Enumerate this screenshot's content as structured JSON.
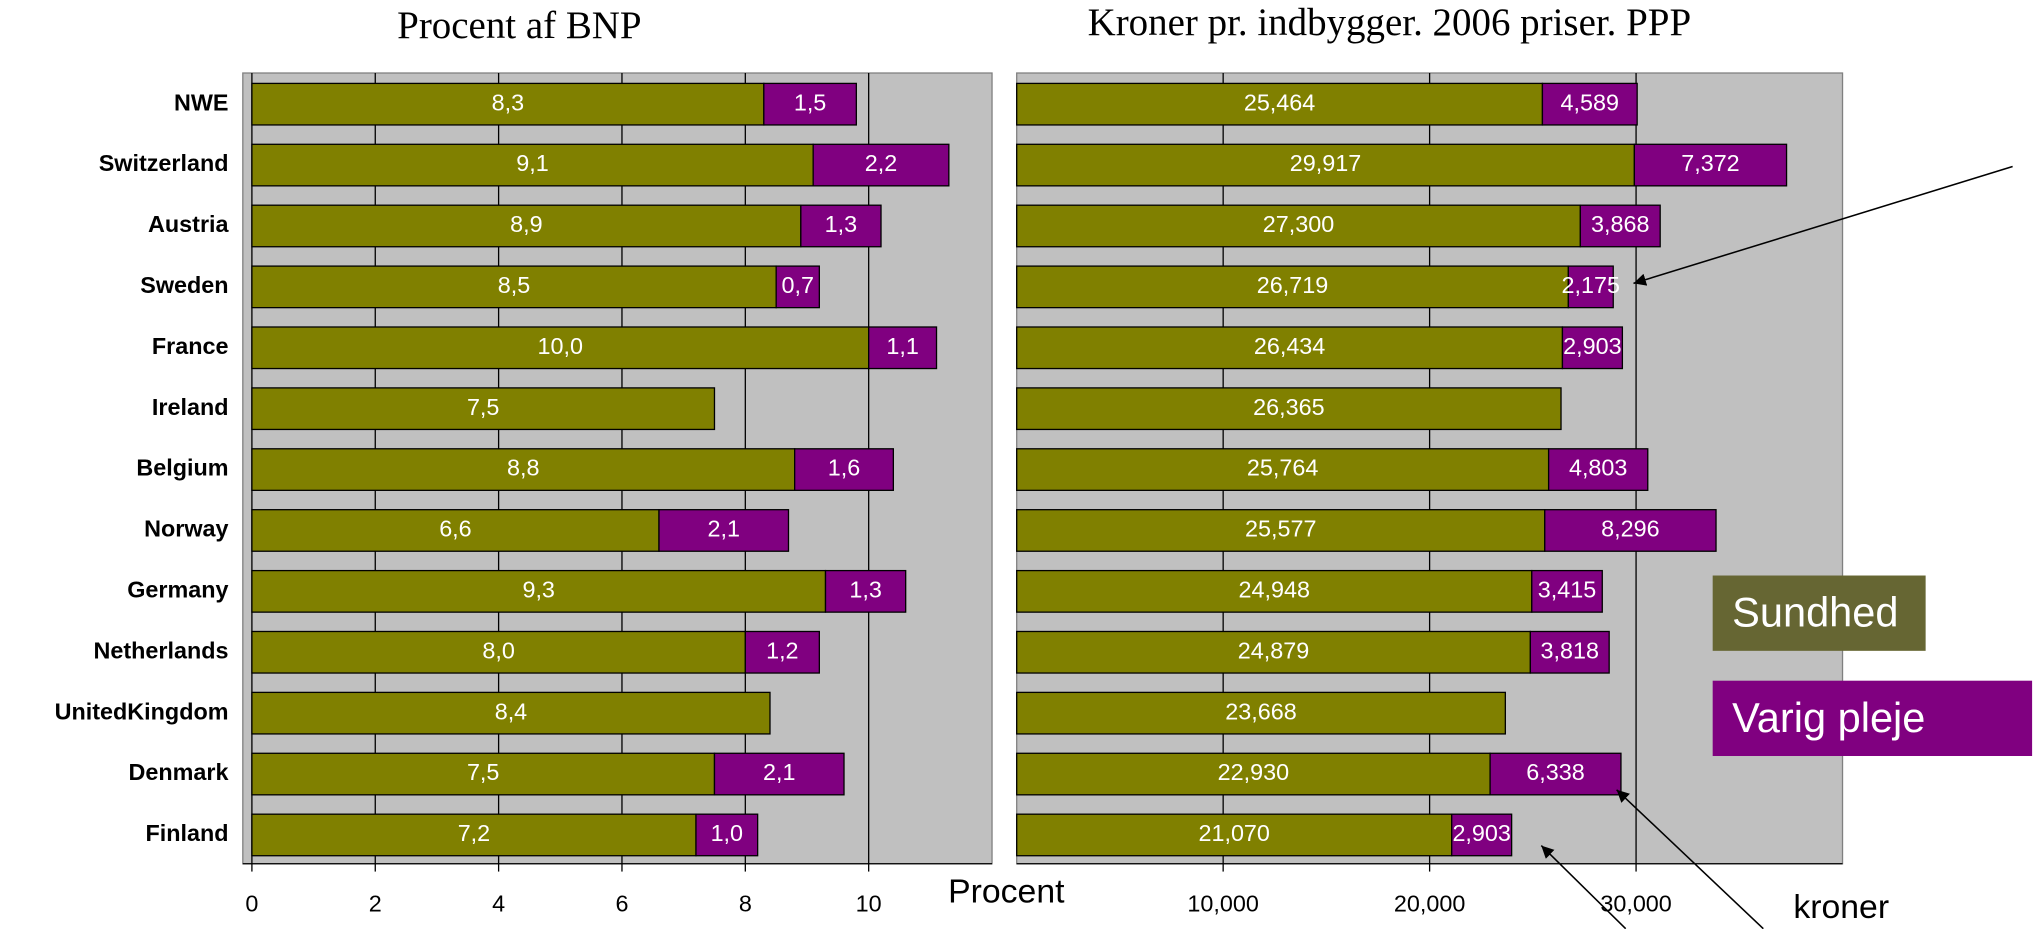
{
  "chart_data": [
    {
      "type": "bar",
      "orientation": "horizontal",
      "stacked": true,
      "title": "Procent af BNP",
      "x_label": "Procent",
      "categories": [
        "NWE",
        "Switzerland",
        "Austria",
        "Sweden",
        "France",
        "Ireland",
        "Belgium",
        "Norway",
        "Germany",
        "Netherlands",
        "UnitedKingdom",
        "Denmark",
        "Finland"
      ],
      "series": [
        {
          "color": "#808000",
          "values": [
            8.3,
            9.1,
            8.9,
            8.5,
            10.0,
            7.5,
            8.8,
            6.6,
            9.3,
            8.0,
            8.4,
            7.5,
            7.2
          ],
          "value_labels": [
            "8,3",
            "9,1",
            "8,9",
            "8,5",
            "10,0",
            "7,5",
            "8,8",
            "6,6",
            "9,3",
            "8,0",
            "8,4",
            "7,5",
            "7,2"
          ]
        },
        {
          "color": "#800080",
          "values": [
            1.5,
            2.2,
            1.3,
            0.7,
            1.1,
            null,
            1.6,
            2.1,
            1.3,
            1.2,
            null,
            2.1,
            1.0
          ],
          "value_labels": [
            "1,5",
            "2,2",
            "1,3",
            "0,7",
            "1,1",
            null,
            "1,6",
            "2,1",
            "1,3",
            "1,2",
            null,
            "2,1",
            "1,0"
          ]
        }
      ],
      "xlim": [
        0,
        12
      ],
      "xticks": [
        0,
        2,
        4,
        6,
        8,
        10
      ],
      "grid": true
    },
    {
      "type": "bar",
      "orientation": "horizontal",
      "stacked": true,
      "title": "Kroner pr. indbygger. 2006 priser. PPP",
      "x_label": "kroner",
      "series": [
        {
          "name": "Sundhed",
          "color": "#808000",
          "legend_color": "#666633",
          "values": [
            25464,
            29917,
            27300,
            26719,
            26434,
            26365,
            25764,
            25577,
            24948,
            24879,
            23668,
            22930,
            21070
          ],
          "value_labels": [
            "25,464",
            "29,917",
            "27,300",
            "26,719",
            "26,434",
            "26,365",
            "25,764",
            "25,577",
            "24,948",
            "24,879",
            "23,668",
            "22,930",
            "21,070"
          ]
        },
        {
          "name": "Varig pleje",
          "color": "#800080",
          "legend_color": "#800080",
          "values": [
            4589,
            7372,
            3868,
            2175,
            2903,
            null,
            4803,
            8296,
            3415,
            3818,
            null,
            6338,
            2903
          ],
          "value_labels": [
            "4,589",
            "7,372",
            "3,868",
            "2,175",
            "2,903",
            null,
            "4,803",
            "8,296",
            "3,415",
            "3,818",
            null,
            "6,338",
            "2,903"
          ]
        }
      ],
      "xlim": [
        0,
        40000
      ],
      "xticks": [
        {
          "value": 10000,
          "label": "10,000"
        },
        {
          "value": 20000,
          "label": "20,000"
        },
        {
          "value": 30000,
          "label": "30,000"
        }
      ],
      "grid": true
    }
  ]
}
